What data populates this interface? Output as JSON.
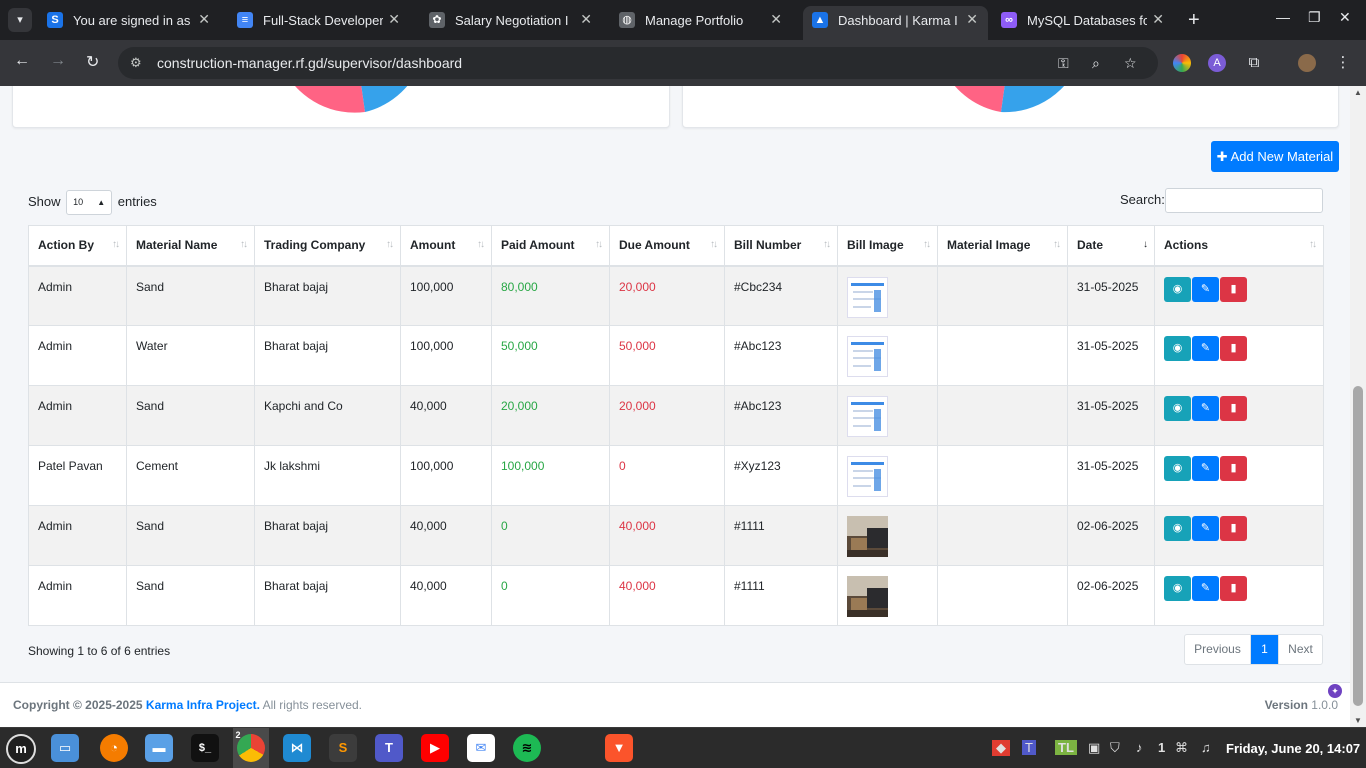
{
  "browser": {
    "tabs": [
      {
        "label": "You are signed in as",
        "icon": "s-icon",
        "fav": "S",
        "favColor": "#1a73e8",
        "active": false
      },
      {
        "label": "Full-Stack Developer",
        "icon": "docs-icon",
        "fav": "≡",
        "favColor": "#4285f4",
        "active": false
      },
      {
        "label": "Salary Negotiation I",
        "icon": "openai-icon",
        "fav": "✿",
        "favColor": "#5f6368",
        "active": false
      },
      {
        "label": "Manage Portfolio",
        "icon": "globe-icon",
        "fav": "◍",
        "favColor": "#5f6368",
        "active": false
      },
      {
        "label": "Dashboard | Karma I",
        "icon": "karma-icon",
        "fav": "▲",
        "favColor": "#1a73e8",
        "active": true
      },
      {
        "label": "MySQL Databases fo",
        "icon": "infinity-icon",
        "fav": "∞",
        "favColor": "#8e5cf7",
        "active": false
      }
    ],
    "url": "construction-manager.rf.gd/supervisor/dashboard"
  },
  "toolbar": {
    "add_label": "Add New Material"
  },
  "datatable": {
    "show_label": "Show",
    "entries_label": "entries",
    "length_value": "10",
    "search_label": "Search:",
    "search_value": "",
    "columns": [
      "Action By",
      "Material Name",
      "Trading Company",
      "Amount",
      "Paid Amount",
      "Due Amount",
      "Bill Number",
      "Bill Image",
      "Material Image",
      "Date",
      "Actions"
    ],
    "rows": [
      {
        "action_by": "Admin",
        "material": "Sand",
        "company": "Bharat bajaj",
        "amount": "100,000",
        "paid": "80,000",
        "due": "20,000",
        "bill_no": "#Cbc234",
        "bill_img": "document",
        "date": "31-05-2025"
      },
      {
        "action_by": "Admin",
        "material": "Water",
        "company": "Bharat bajaj",
        "amount": "100,000",
        "paid": "50,000",
        "due": "50,000",
        "bill_no": "#Abc123",
        "bill_img": "document",
        "date": "31-05-2025"
      },
      {
        "action_by": "Admin",
        "material": "Sand",
        "company": "Kapchi and Co",
        "amount": "40,000",
        "paid": "20,000",
        "due": "20,000",
        "bill_no": "#Abc123",
        "bill_img": "document",
        "date": "31-05-2025"
      },
      {
        "action_by": "Patel Pavan",
        "material": "Cement",
        "company": "Jk lakshmi",
        "amount": "100,000",
        "paid": "100,000",
        "due": "0",
        "bill_no": "#Xyz123",
        "bill_img": "document",
        "date": "31-05-2025"
      },
      {
        "action_by": "Admin",
        "material": "Sand",
        "company": "Bharat bajaj",
        "amount": "40,000",
        "paid": "0",
        "due": "40,000",
        "bill_no": "#1111",
        "bill_img": "photo",
        "date": "02-06-2025"
      },
      {
        "action_by": "Admin",
        "material": "Sand",
        "company": "Bharat bajaj",
        "amount": "40,000",
        "paid": "0",
        "due": "40,000",
        "bill_no": "#1111",
        "bill_img": "photo",
        "date": "02-06-2025"
      }
    ],
    "info": "Showing 1 to 6 of 6 entries",
    "pager": {
      "prev": "Previous",
      "current": "1",
      "next": "Next"
    }
  },
  "footer": {
    "copyright_prefix": "Copyright © 2025-2025",
    "company": "Karma Infra Project",
    "dot": ".",
    "rights": "All rights reserved.",
    "version_label": "Version",
    "version": "1.0.0"
  },
  "taskbar": {
    "clock": "Friday, June 20, 14:07",
    "notification_count": "1",
    "chrome_badge": "2"
  },
  "colors": {
    "primary": "#007bff",
    "info": "#17a2b8",
    "danger": "#dc3545",
    "success": "#28a745",
    "pie_pink": "#ff6384",
    "pie_blue": "#36a2eb"
  }
}
